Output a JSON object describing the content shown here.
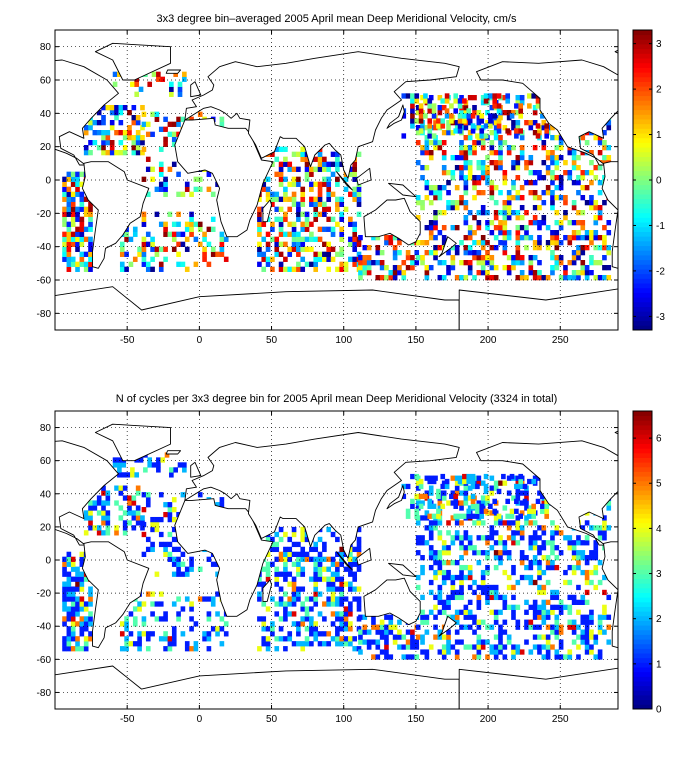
{
  "chart_data": [
    {
      "type": "heatmap",
      "title": "3x3 degree bin–averaged 2005 April mean Deep Meridional Velocity, cm/s",
      "xlabel": "",
      "ylabel": "",
      "xlim": [
        -100,
        290
      ],
      "ylim": [
        -90,
        90
      ],
      "xticks": [
        -50,
        0,
        50,
        100,
        150,
        200,
        250
      ],
      "yticks": [
        -80,
        -60,
        -40,
        -20,
        0,
        20,
        40,
        60,
        80
      ],
      "grid": "dotted",
      "colorbar": {
        "range": [
          -3.3,
          3.3
        ],
        "ticks": [
          -3,
          -2,
          -1,
          0,
          1,
          2,
          3
        ],
        "colormap": "jet"
      },
      "bin_size_deg": 3,
      "seed": 11,
      "regions": [
        {
          "lon": [
            -80,
            -40
          ],
          "lat": [
            15,
            45
          ],
          "density": 0.55
        },
        {
          "lon": [
            -60,
            -10
          ],
          "lat": [
            50,
            65
          ],
          "density": 0.35
        },
        {
          "lon": [
            -40,
            15
          ],
          "lat": [
            -10,
            40
          ],
          "density": 0.35
        },
        {
          "lon": [
            -95,
            -75
          ],
          "lat": [
            -55,
            5
          ],
          "density": 0.7
        },
        {
          "lon": [
            -55,
            20
          ],
          "lat": [
            -55,
            -20
          ],
          "density": 0.35
        },
        {
          "lon": [
            40,
            110
          ],
          "lat": [
            -55,
            20
          ],
          "density": 0.55
        },
        {
          "lon": [
            110,
            150
          ],
          "lat": [
            -60,
            -35
          ],
          "density": 0.5
        },
        {
          "lon": [
            150,
            285
          ],
          "lat": [
            -60,
            50
          ],
          "density": 0.45
        },
        {
          "lon": [
            140,
            240
          ],
          "lat": [
            25,
            50
          ],
          "density": 0.35
        }
      ]
    },
    {
      "type": "heatmap",
      "title": "N of cycles per 3x3 degree bin for 2005 April mean Deep Meridional Velocity (3324 in total)",
      "xlabel": "",
      "ylabel": "",
      "xlim": [
        -100,
        290
      ],
      "ylim": [
        -90,
        90
      ],
      "xticks": [
        -50,
        0,
        50,
        100,
        150,
        200,
        250
      ],
      "yticks": [
        -80,
        -60,
        -40,
        -20,
        0,
        20,
        40,
        60,
        80
      ],
      "grid": "dotted",
      "colorbar": {
        "range": [
          0,
          6.6
        ],
        "ticks": [
          0,
          1,
          2,
          3,
          4,
          5,
          6
        ],
        "colormap": "jet"
      },
      "bin_size_deg": 3,
      "seed": 29,
      "total_cycles": 3324,
      "regions": [
        {
          "lon": [
            -80,
            -40
          ],
          "lat": [
            15,
            45
          ],
          "density": 0.55
        },
        {
          "lon": [
            -60,
            -10
          ],
          "lat": [
            50,
            65
          ],
          "density": 0.35
        },
        {
          "lon": [
            -40,
            15
          ],
          "lat": [
            -10,
            40
          ],
          "density": 0.35
        },
        {
          "lon": [
            -95,
            -75
          ],
          "lat": [
            -55,
            5
          ],
          "density": 0.7
        },
        {
          "lon": [
            -55,
            20
          ],
          "lat": [
            -55,
            -20
          ],
          "density": 0.35
        },
        {
          "lon": [
            40,
            110
          ],
          "lat": [
            -55,
            20
          ],
          "density": 0.55
        },
        {
          "lon": [
            110,
            150
          ],
          "lat": [
            -60,
            -35
          ],
          "density": 0.5
        },
        {
          "lon": [
            150,
            285
          ],
          "lat": [
            -60,
            50
          ],
          "density": 0.45
        },
        {
          "lon": [
            140,
            240
          ],
          "lat": [
            25,
            50
          ],
          "density": 0.35
        }
      ]
    }
  ]
}
